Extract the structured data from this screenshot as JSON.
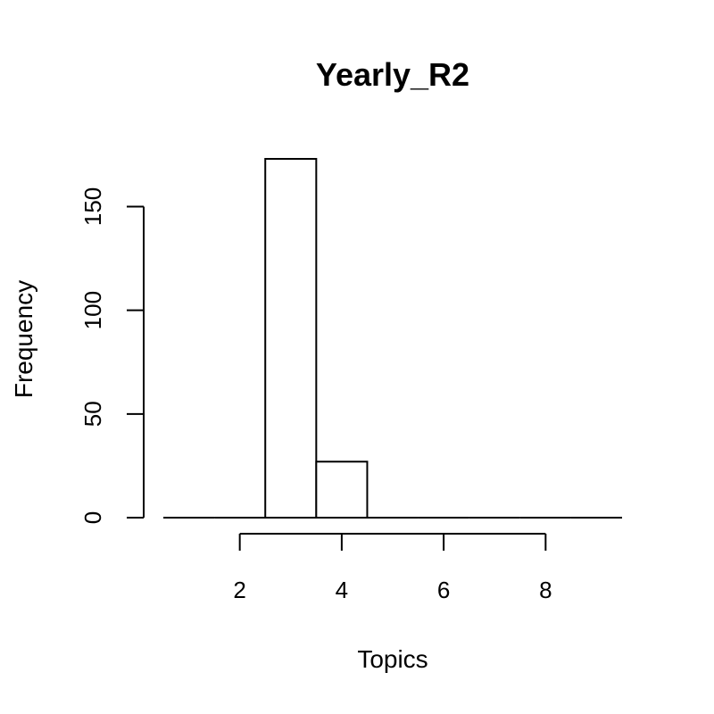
{
  "chart_data": {
    "type": "bar",
    "title": "Yearly_R2",
    "xlabel": "Topics",
    "ylabel": "Frequency",
    "bins": [
      {
        "from": 0.5,
        "to": 1.5,
        "value": 0
      },
      {
        "from": 1.5,
        "to": 2.5,
        "value": 0
      },
      {
        "from": 2.5,
        "to": 3.5,
        "value": 173
      },
      {
        "from": 3.5,
        "to": 4.5,
        "value": 27
      },
      {
        "from": 4.5,
        "to": 5.5,
        "value": 0
      },
      {
        "from": 5.5,
        "to": 6.5,
        "value": 0
      },
      {
        "from": 6.5,
        "to": 7.5,
        "value": 0
      },
      {
        "from": 7.5,
        "to": 8.5,
        "value": 0
      },
      {
        "from": 8.5,
        "to": 9.5,
        "value": 0
      }
    ],
    "xlim": [
      0.5,
      9.5
    ],
    "ylim": [
      0,
      173
    ],
    "x_ticks": [
      2,
      4,
      6,
      8
    ],
    "y_ticks": [
      0,
      50,
      100,
      150
    ],
    "grid": false
  }
}
